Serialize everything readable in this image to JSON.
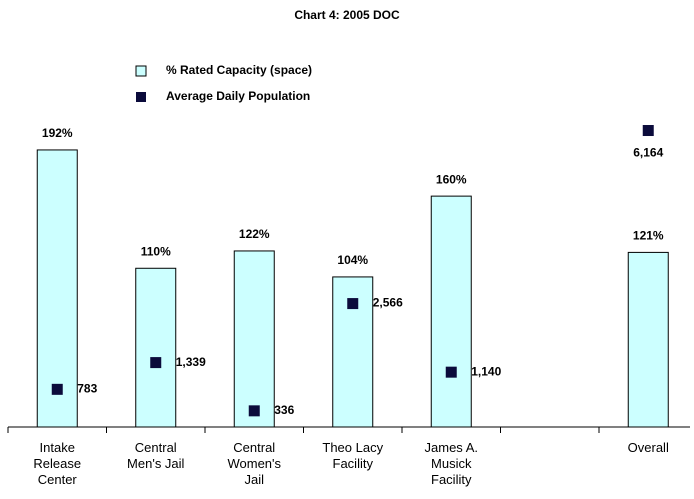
{
  "chart_data": {
    "type": "bar",
    "title": "Chart 4: 2005 DOC",
    "categories": [
      "Intake Release Center",
      "Central Men's Jail",
      "Central Women's Jail",
      "Theo Lacy Facility",
      "James A. Musick Facility",
      null,
      "Overall"
    ],
    "series": [
      {
        "name": "% Rated Capacity (space)",
        "type": "bar",
        "color": "#ccffff",
        "values": [
          192,
          110,
          122,
          104,
          160,
          null,
          121
        ],
        "value_labels": [
          "192%",
          "110%",
          "122%",
          "104%",
          "160%",
          null,
          "121%"
        ]
      },
      {
        "name": "Average Daily Population",
        "type": "scatter",
        "axis": "y2",
        "color": "#0b0b3b",
        "values": [
          783,
          1339,
          336,
          2566,
          1140,
          null,
          6164
        ],
        "value_labels": [
          "783",
          "1,339",
          "336",
          "2,566",
          "1,140",
          null,
          "6,164"
        ]
      }
    ],
    "ylim": [
      0,
      200
    ],
    "y2lim": [
      0,
      6000
    ],
    "grid": false
  }
}
